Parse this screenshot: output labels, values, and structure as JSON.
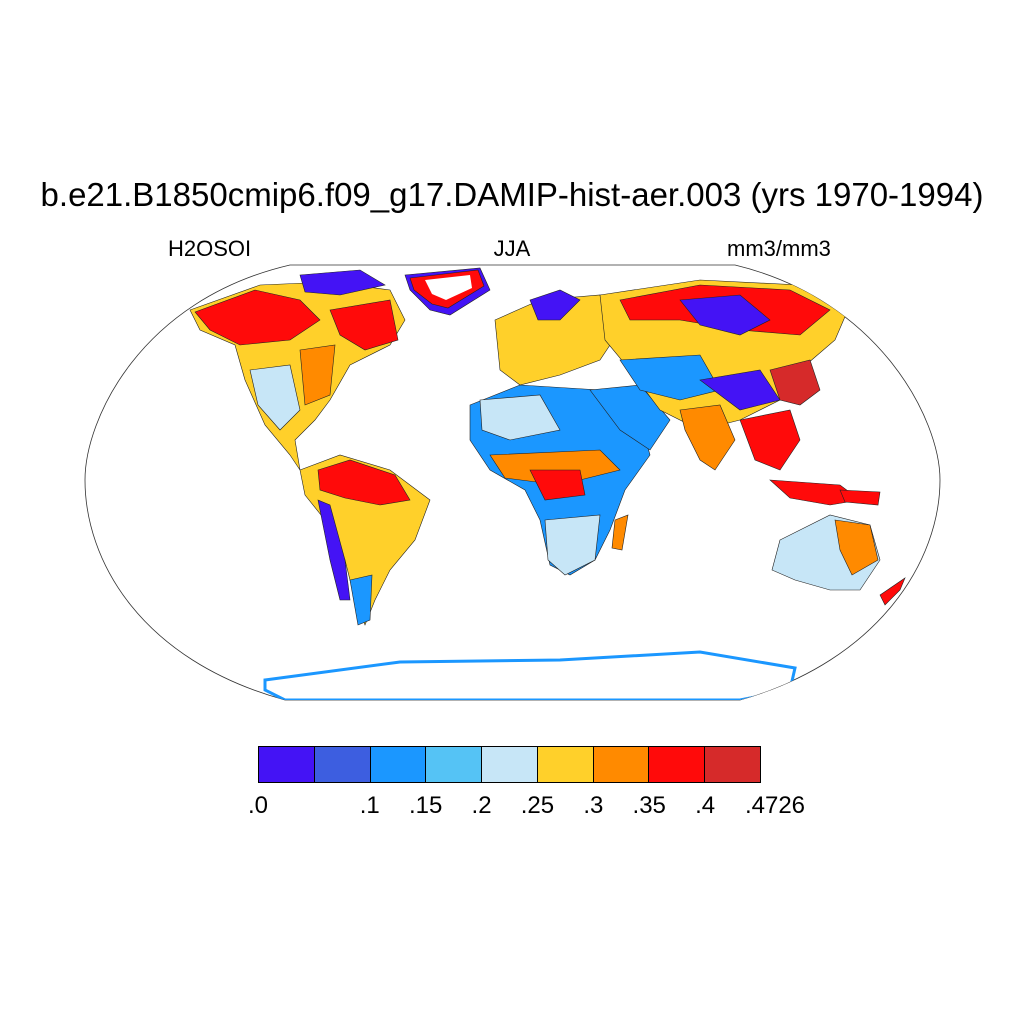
{
  "title": "b.e21.B1850cmip6.f09_g17.DAMIP-hist-aer.003 (yrs 1970-1994)",
  "subtitle_left": "H2OSOI",
  "subtitle_center": "JJA",
  "subtitle_right": "mm3/mm3",
  "colorbar": {
    "colors": [
      "#4413f5",
      "#3d5ee0",
      "#1b97ff",
      "#55c3f5",
      "#c7e6f7",
      "#ffd02a",
      "#ff8a00",
      "#ff0a0a",
      "#d62a2a"
    ],
    "labels": [
      ".0",
      ".1",
      ".15",
      ".2",
      ".25",
      ".3",
      ".35",
      ".4",
      ".4726"
    ]
  },
  "map": {
    "projection": "Robinson",
    "variable": "soil water",
    "colors": {
      "very_dry": "#4413f5",
      "dry": "#1b97ff",
      "moderate": "#c7e6f7",
      "medium": "#ffd02a",
      "moist": "#ff8a00",
      "wet": "#ff0a0a",
      "very_wet": "#d62a2a"
    }
  }
}
